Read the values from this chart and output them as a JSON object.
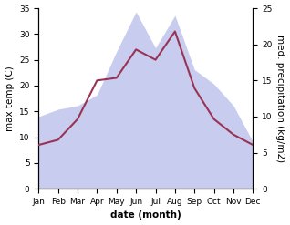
{
  "months": [
    "Jan",
    "Feb",
    "Mar",
    "Apr",
    "May",
    "Jun",
    "Jul",
    "Aug",
    "Sep",
    "Oct",
    "Nov",
    "Dec"
  ],
  "month_indices": [
    0,
    1,
    2,
    3,
    4,
    5,
    6,
    7,
    8,
    9,
    10,
    11
  ],
  "temperature": [
    8.5,
    9.5,
    13.5,
    21.0,
    21.5,
    27.0,
    25.0,
    30.5,
    19.5,
    13.5,
    10.5,
    8.5
  ],
  "precipitation": [
    10.0,
    11.0,
    11.5,
    13.0,
    19.0,
    24.5,
    19.5,
    24.0,
    16.5,
    14.5,
    11.5,
    6.5
  ],
  "temp_color": "#993355",
  "precip_fill_color": "#c8ccee",
  "temp_ylim": [
    0,
    35
  ],
  "precip_ylim": [
    0,
    25
  ],
  "temp_yticks": [
    0,
    5,
    10,
    15,
    20,
    25,
    30,
    35
  ],
  "precip_yticks": [
    0,
    5,
    10,
    15,
    20,
    25
  ],
  "xlabel": "date (month)",
  "ylabel_left": "max temp (C)",
  "ylabel_right": "med. precipitation (kg/m2)",
  "label_fontsize": 7.5,
  "tick_fontsize": 6.5
}
